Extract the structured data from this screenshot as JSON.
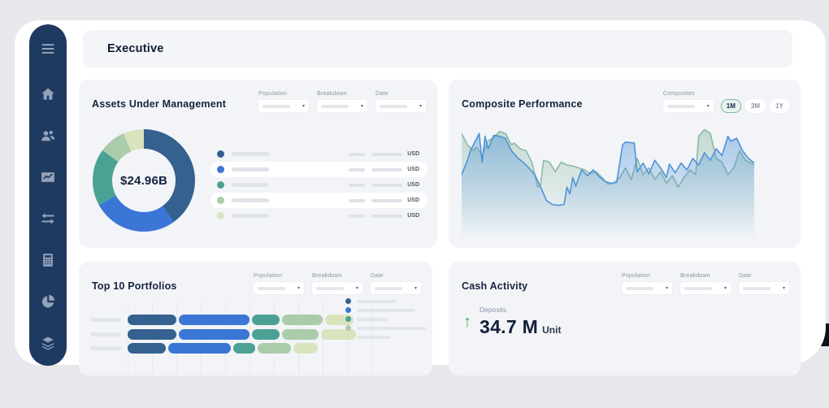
{
  "app": {
    "title": "Executive"
  },
  "sidebar": {
    "icons": [
      "menu-icon",
      "home-icon",
      "users-icon",
      "performance-icon",
      "transfers-icon",
      "calculator-icon",
      "pie-chart-icon",
      "layers-icon"
    ]
  },
  "filters": {
    "population": "Population",
    "breakdown": "Breakdown",
    "date": "Date",
    "composites": "Composites"
  },
  "cards": {
    "aum": {
      "title": "Assets Under Management",
      "center_value": "$24.96B",
      "currency": "USD",
      "legend_row_count": 5
    },
    "composite": {
      "title": "Composite Performance",
      "ranges": [
        "1M",
        "3M",
        "1Y"
      ],
      "active_range": "1M"
    },
    "portfolios": {
      "title": "Top 10 Portfolios"
    },
    "cash": {
      "title": "Cash Activity",
      "metric_label": "Deposits",
      "metric_value": "34.7 M",
      "metric_unit": "Unit"
    }
  },
  "colors": {
    "sidebar_bg": "#1f3a60",
    "sidebar_icon": "#94a1b9",
    "card_bg": "#f2f4f8",
    "palette_navy": "#35618f",
    "palette_blue": "#3b76d6",
    "palette_teal": "#4ba294",
    "palette_sage": "#abccaa",
    "palette_pale": "#d9e4bd",
    "line_blue": "#4f93d8",
    "line_green": "#8cbaa3",
    "positive_green": "#53a257",
    "active_range_bg": "#e8f3ee",
    "active_range_border": "#7cb6a3"
  },
  "chart_data": [
    {
      "type": "pie",
      "subtype": "donut",
      "title": "Assets Under Management",
      "center_label": "$24.96B",
      "unit": "USD",
      "values_percent_estimated": [
        40,
        27,
        18,
        8.5,
        6.5
      ],
      "colors": [
        "#35618f",
        "#3b76d6",
        "#4ba294",
        "#abccaa",
        "#d9e4bd"
      ],
      "labels_visible": false
    },
    {
      "type": "area",
      "title": "Composite Performance",
      "x_axis": "time (1M range selected)",
      "y_axis": "performance (axis unlabeled)",
      "ylim": [
        0,
        100
      ],
      "grid": false,
      "values_estimated_normalized": true,
      "series": [
        {
          "name": "composite-blue",
          "color": "#4f93d8",
          "points": [
            [
              0,
              45
            ],
            [
              2,
              60
            ],
            [
              3,
              70
            ],
            [
              5,
              82
            ],
            [
              6,
              88
            ],
            [
              7,
              58
            ],
            [
              8,
              85
            ],
            [
              9,
              72
            ],
            [
              11,
              86
            ],
            [
              13,
              85
            ],
            [
              15,
              83
            ],
            [
              17,
              70
            ],
            [
              19,
              63
            ],
            [
              21,
              58
            ],
            [
              23,
              52
            ],
            [
              25,
              45
            ],
            [
              27,
              32
            ],
            [
              29,
              18
            ],
            [
              31,
              14
            ],
            [
              33,
              13
            ],
            [
              35,
              14
            ],
            [
              36,
              32
            ],
            [
              37,
              25
            ],
            [
              38,
              42
            ],
            [
              39,
              33
            ],
            [
              41,
              50
            ],
            [
              43,
              44
            ],
            [
              45,
              50
            ],
            [
              47,
              43
            ],
            [
              49,
              38
            ],
            [
              51,
              36
            ],
            [
              53,
              37
            ],
            [
              55,
              76
            ],
            [
              56,
              79
            ],
            [
              59,
              78
            ],
            [
              60,
              48
            ],
            [
              62,
              57
            ],
            [
              64,
              46
            ],
            [
              66,
              60
            ],
            [
              68,
              52
            ],
            [
              70,
              42
            ],
            [
              71,
              56
            ],
            [
              73,
              47
            ],
            [
              75,
              57
            ],
            [
              77,
              50
            ],
            [
              79,
              62
            ],
            [
              81,
              55
            ],
            [
              83,
              68
            ],
            [
              85,
              60
            ],
            [
              87,
              72
            ],
            [
              89,
              65
            ],
            [
              91,
              85
            ],
            [
              92,
              80
            ],
            [
              94,
              83
            ],
            [
              96,
              70
            ],
            [
              98,
              62
            ],
            [
              100,
              57
            ]
          ]
        },
        {
          "name": "composite-green",
          "color": "#8cbaa3",
          "points": [
            [
              0,
              88
            ],
            [
              2,
              76
            ],
            [
              4,
              70
            ],
            [
              5,
              74
            ],
            [
              7,
              65
            ],
            [
              9,
              80
            ],
            [
              11,
              84
            ],
            [
              13,
              90
            ],
            [
              15,
              88
            ],
            [
              17,
              76
            ],
            [
              18,
              78
            ],
            [
              20,
              72
            ],
            [
              22,
              70
            ],
            [
              24,
              58
            ],
            [
              26,
              32
            ],
            [
              27,
              35
            ],
            [
              28,
              60
            ],
            [
              30,
              58
            ],
            [
              32,
              48
            ],
            [
              34,
              58
            ],
            [
              36,
              55
            ],
            [
              38,
              54
            ],
            [
              40,
              52
            ],
            [
              42,
              50
            ],
            [
              44,
              46
            ],
            [
              46,
              48
            ],
            [
              48,
              42
            ],
            [
              50,
              35
            ],
            [
              52,
              36
            ],
            [
              54,
              42
            ],
            [
              56,
              52
            ],
            [
              58,
              40
            ],
            [
              60,
              62
            ],
            [
              62,
              45
            ],
            [
              64,
              52
            ],
            [
              66,
              40
            ],
            [
              68,
              48
            ],
            [
              70,
              36
            ],
            [
              72,
              44
            ],
            [
              74,
              32
            ],
            [
              76,
              42
            ],
            [
              78,
              50
            ],
            [
              80,
              45
            ],
            [
              81,
              85
            ],
            [
              83,
              92
            ],
            [
              85,
              88
            ],
            [
              87,
              62
            ],
            [
              89,
              58
            ],
            [
              91,
              45
            ],
            [
              93,
              52
            ],
            [
              95,
              70
            ],
            [
              97,
              60
            ],
            [
              100,
              55
            ]
          ]
        }
      ]
    },
    {
      "type": "bar",
      "subtype": "horizontal-stacked",
      "title": "Top 10 Portfolios",
      "categories": [
        "row-1",
        "row-2",
        "row-3"
      ],
      "colors": [
        "#35618f",
        "#3b76d6",
        "#4ba294",
        "#abccaa",
        "#d9e4bd"
      ],
      "series_segments_relative": [
        [
          60,
          87,
          34,
          50,
          35
        ],
        [
          60,
          87,
          34,
          45,
          43
        ],
        [
          47,
          77,
          27,
          41,
          30
        ]
      ],
      "legend_items": 5,
      "labels_visible": false
    }
  ]
}
